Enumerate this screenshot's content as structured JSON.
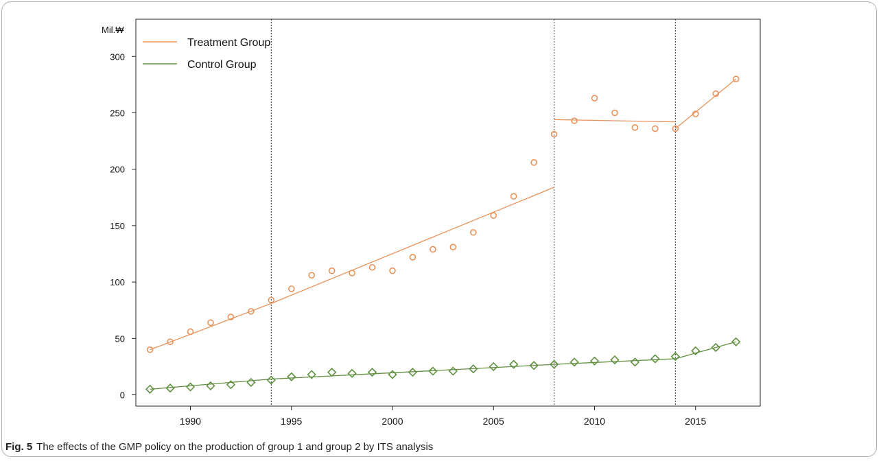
{
  "figure": {
    "label": "Fig. 5",
    "caption": "The effects of the GMP policy on the production of group 1 and group 2 by ITS analysis"
  },
  "chart_data": {
    "type": "scatter",
    "title": "",
    "xlabel": "",
    "ylabel": "Mil.₩",
    "xlim": [
      1987.3,
      2018.2
    ],
    "ylim": [
      -10,
      333
    ],
    "x_ticks": [
      1990,
      1995,
      2000,
      2005,
      2010,
      2015
    ],
    "y_ticks": [
      0,
      50,
      100,
      150,
      200,
      250,
      300
    ],
    "grid": false,
    "legend": "top-left",
    "interruptions": [
      1994,
      2008,
      2014
    ],
    "x": [
      1988,
      1989,
      1990,
      1991,
      1992,
      1993,
      1994,
      1995,
      1996,
      1997,
      1998,
      1999,
      2000,
      2001,
      2002,
      2003,
      2004,
      2005,
      2006,
      2007,
      2008,
      2009,
      2010,
      2011,
      2012,
      2013,
      2014,
      2015,
      2016,
      2017
    ],
    "series": [
      {
        "name": "Treatment Group",
        "color": "#E8925A",
        "marker": "circle",
        "values": [
          40,
          47,
          56,
          64,
          69,
          74,
          84,
          94,
          106,
          110,
          108,
          113,
          110,
          122,
          129,
          131,
          144,
          159,
          176,
          206,
          231,
          243,
          263,
          250,
          237,
          236,
          236,
          249,
          267,
          280
        ],
        "fit_segments": [
          {
            "x": [
              1988,
              1994
            ],
            "y": [
              40,
              81
            ]
          },
          {
            "x": [
              1994,
              2008
            ],
            "y": [
              81,
              184
            ]
          },
          {
            "x": [
              2008,
              2014
            ],
            "y": [
              244,
              242
            ]
          },
          {
            "x": [
              2014,
              2017
            ],
            "y": [
              236,
              280
            ]
          }
        ]
      },
      {
        "name": "Control Group",
        "color": "#5F8F3F",
        "marker": "diamond",
        "values": [
          5,
          6,
          7,
          8,
          9,
          11,
          13,
          16,
          18,
          20,
          19,
          20,
          18,
          20,
          21,
          21,
          23,
          25,
          27,
          26,
          27,
          29,
          30,
          31,
          29,
          32,
          34,
          39,
          42,
          47
        ],
        "fit_segments": [
          {
            "x": [
              1988,
              1994
            ],
            "y": [
              5,
              14
            ]
          },
          {
            "x": [
              1994,
              2008
            ],
            "y": [
              14,
              27
            ]
          },
          {
            "x": [
              2008,
              2014
            ],
            "y": [
              27,
              32
            ]
          },
          {
            "x": [
              2014,
              2017
            ],
            "y": [
              32,
              47
            ]
          }
        ]
      }
    ]
  }
}
